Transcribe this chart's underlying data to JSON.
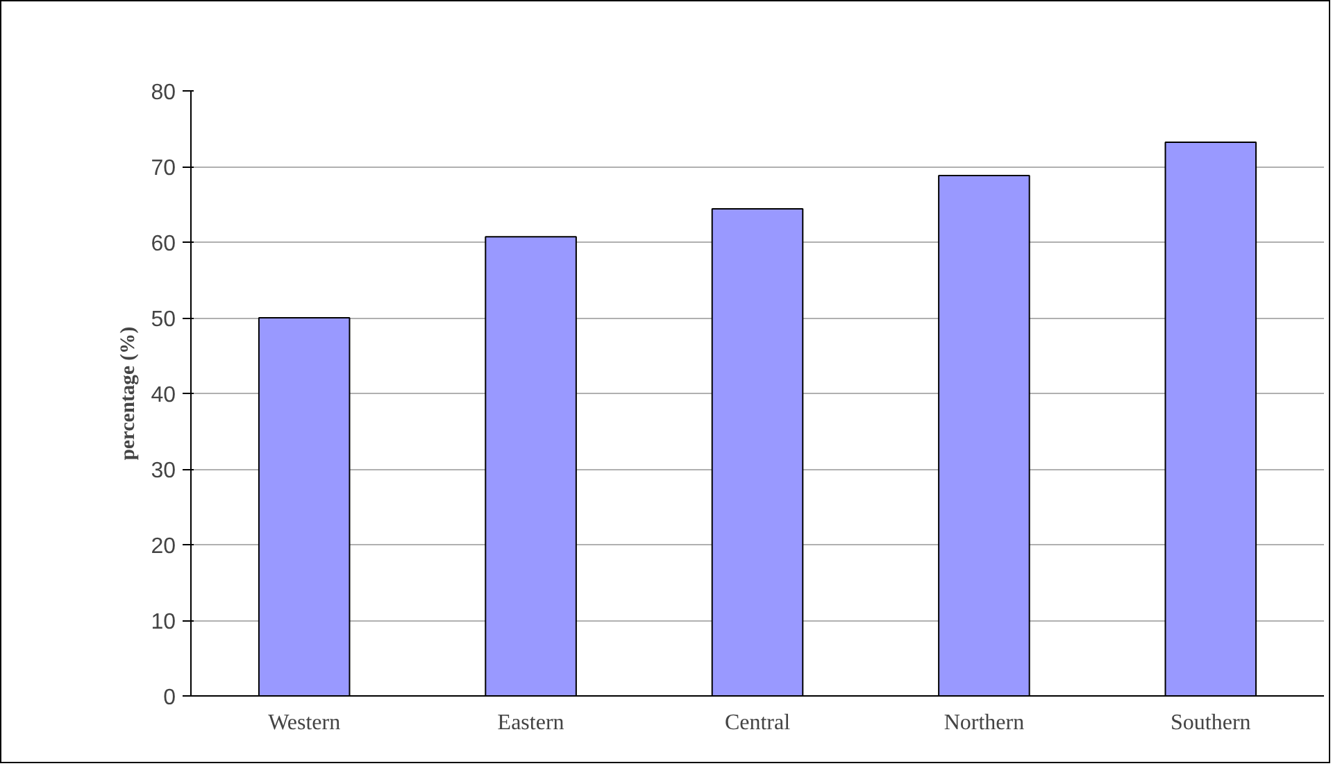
{
  "chart_data": {
    "type": "bar",
    "ylabel": "percentage (%)",
    "categories": [
      "Western",
      "Eastern",
      "Central",
      "Northern",
      "Southern"
    ],
    "values": [
      50.0,
      60.7,
      64.4,
      68.8,
      73.2
    ],
    "color": "#9999ff",
    "ylim": [
      0,
      80
    ],
    "yticks": [
      0,
      10,
      20,
      30,
      40,
      50,
      60,
      70,
      80
    ],
    "grid": "y"
  }
}
